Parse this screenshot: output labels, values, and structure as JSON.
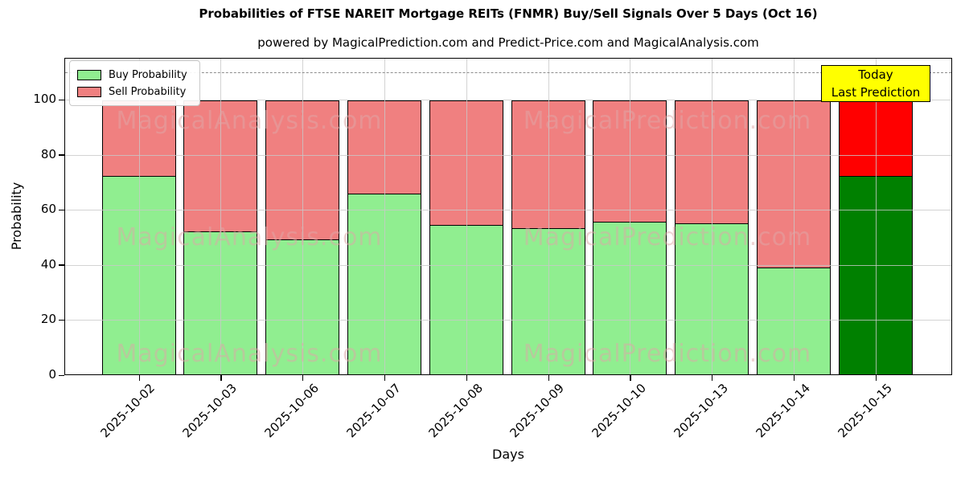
{
  "header": {
    "title": "Probabilities of FTSE NAREIT Mortgage REITs (FNMR) Buy/Sell Signals Over 5 Days (Oct 16)",
    "subtitle": "powered by MagicalPrediction.com and Predict-Price.com and MagicalAnalysis.com"
  },
  "legend": {
    "buy_label": "Buy Probability",
    "sell_label": "Sell Probability"
  },
  "annotation": {
    "line1": "Today",
    "line2": "Last Prediction"
  },
  "axes": {
    "x_label": "Days",
    "y_label": "Probability",
    "y_ticks": [
      0,
      20,
      40,
      60,
      80,
      100
    ]
  },
  "watermarks": {
    "left_text": "MagicalAnalysis.com",
    "right_text": "MagicalPrediction.com"
  },
  "colors": {
    "buy": "#90ee90",
    "sell": "#f08080",
    "buy_today": "#008000",
    "sell_today": "#ff0000",
    "bar_edge": "#000000",
    "grid": "#c8c8c8",
    "dashed_line": "#8c8c8c",
    "annotation_bg": "#ffff00",
    "watermark": "#dfa8a8"
  },
  "chart_data": {
    "type": "bar",
    "stacked": true,
    "title": "Probabilities of FTSE NAREIT Mortgage REITs (FNMR) Buy/Sell Signals Over 5 Days (Oct 16)",
    "xlabel": "Days",
    "ylabel": "Probability",
    "categories": [
      "2025-10-02",
      "2025-10-03",
      "2025-10-06",
      "2025-10-07",
      "2025-10-08",
      "2025-10-09",
      "2025-10-10",
      "2025-10-13",
      "2025-10-14",
      "2025-10-15"
    ],
    "series": [
      {
        "name": "Buy Probability",
        "values": [
          72.7,
          52.4,
          49.5,
          66.3,
          55.0,
          53.7,
          56.1,
          55.5,
          39.4,
          72.7
        ]
      },
      {
        "name": "Sell Probability",
        "values": [
          27.3,
          47.6,
          50.5,
          33.7,
          45.0,
          46.3,
          43.9,
          44.5,
          60.6,
          27.3
        ]
      }
    ],
    "today_index": 9,
    "ylim": [
      0,
      115.3
    ],
    "dashed_line_y": 110,
    "grid": true,
    "legend_position": "upper left"
  }
}
